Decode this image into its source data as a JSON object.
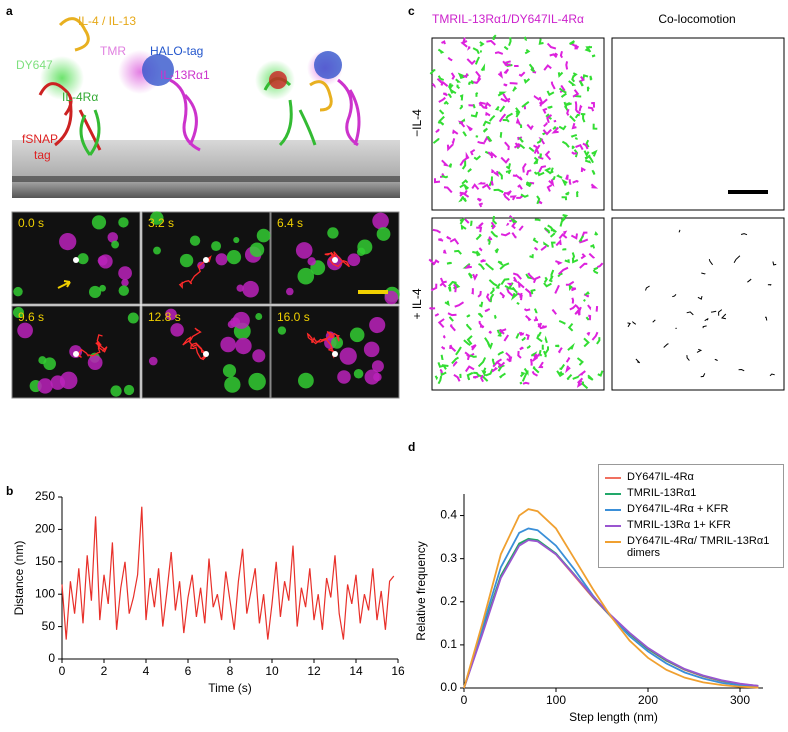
{
  "panel_labels": [
    "a",
    "b",
    "c",
    "d"
  ],
  "panel_a": {
    "labels": {
      "ligand": "IL-4 / IL-13",
      "tmr": "TMR",
      "halo": "HALO-tag",
      "dy647": "DY647",
      "il4r": "IL-4Rα",
      "il13r": "IL-13Rα1",
      "fsnap": [
        "fSNAP-",
        "tag"
      ]
    },
    "times": [
      "0.0 s",
      "3.2 s",
      "6.4 s",
      "9.6 s",
      "12.8 s",
      "16.0 s"
    ]
  },
  "panel_c": {
    "title_left": "TMRIL-13Rα1/DY647IL-4Rα",
    "title_right": "Co-locomotion",
    "rows": [
      "−IL-4",
      "+ IL-4"
    ]
  },
  "chart_data": [
    {
      "type": "line",
      "xlabel": "Time (s)",
      "ylabel": "Distance (nm)",
      "x": [
        0,
        0.2,
        0.4,
        0.6,
        0.8,
        1,
        1.2,
        1.4,
        1.6,
        1.8,
        2,
        2.2,
        2.4,
        2.6,
        2.8,
        3,
        3.2,
        3.4,
        3.6,
        3.8,
        4,
        4.2,
        4.4,
        4.6,
        4.8,
        5,
        5.2,
        5.4,
        5.6,
        5.8,
        6,
        6.2,
        6.4,
        6.6,
        6.8,
        7,
        7.2,
        7.4,
        7.6,
        7.8,
        8,
        8.2,
        8.4,
        8.6,
        8.8,
        9,
        9.2,
        9.4,
        9.6,
        9.8,
        10,
        10.2,
        10.4,
        10.6,
        10.8,
        11,
        11.2,
        11.4,
        11.6,
        11.8,
        12,
        12.2,
        12.4,
        12.6,
        12.8,
        13,
        13.2,
        13.4,
        13.6,
        13.8,
        14,
        14.2,
        14.4,
        14.6,
        14.8,
        15,
        15.2,
        15.4,
        15.6,
        15.8
      ],
      "series": [
        {
          "color": "#e8302a",
          "values": [
            115,
            30,
            120,
            70,
            140,
            55,
            160,
            90,
            220,
            60,
            130,
            85,
            180,
            45,
            110,
            150,
            70,
            95,
            130,
            235,
            60,
            125,
            80,
            140,
            50,
            105,
            165,
            75,
            120,
            40,
            95,
            130,
            65,
            110,
            55,
            155,
            80,
            100,
            60,
            135,
            90,
            45,
            120,
            170,
            70,
            105,
            140,
            55,
            100,
            30,
            85,
            150,
            65,
            120,
            90,
            175,
            50,
            110,
            80,
            140,
            60,
            100,
            45,
            125,
            95,
            160,
            70,
            30,
            115,
            85,
            130,
            55,
            100,
            75,
            140,
            60,
            105,
            45,
            120,
            128
          ]
        }
      ],
      "xlim": [
        0,
        16
      ],
      "xticks": [
        0,
        2,
        4,
        6,
        8,
        10,
        12,
        14,
        16
      ],
      "ylim": [
        0,
        250
      ],
      "yticks": [
        0,
        50,
        100,
        150,
        200,
        250
      ]
    },
    {
      "type": "line",
      "xlabel": "Step length (nm)",
      "ylabel": "Relative frequency",
      "x": [
        0,
        20,
        40,
        60,
        70,
        80,
        100,
        120,
        140,
        160,
        180,
        200,
        220,
        240,
        260,
        280,
        300,
        320
      ],
      "series": [
        {
          "name": "DY647IL-4Rα",
          "color": "#f07060",
          "values": [
            0,
            0.13,
            0.26,
            0.335,
            0.345,
            0.342,
            0.31,
            0.26,
            0.21,
            0.165,
            0.125,
            0.09,
            0.063,
            0.042,
            0.027,
            0.016,
            0.009,
            0.005
          ]
        },
        {
          "name": "TMRIL-13Rα1",
          "color": "#22a86a",
          "values": [
            0,
            0.13,
            0.26,
            0.335,
            0.346,
            0.343,
            0.312,
            0.263,
            0.212,
            0.166,
            0.126,
            0.091,
            0.064,
            0.043,
            0.028,
            0.017,
            0.009,
            0.005
          ]
        },
        {
          "name": "DY647IL-4Rα + KFR",
          "color": "#3a8fd8",
          "values": [
            0,
            0.14,
            0.28,
            0.36,
            0.37,
            0.366,
            0.33,
            0.275,
            0.215,
            0.165,
            0.12,
            0.085,
            0.057,
            0.036,
            0.022,
            0.012,
            0.006,
            0.003
          ]
        },
        {
          "name": "TMRIL-13Rα 1+ KFR",
          "color": "#9a55d0",
          "values": [
            0,
            0.125,
            0.255,
            0.33,
            0.343,
            0.34,
            0.31,
            0.262,
            0.213,
            0.168,
            0.128,
            0.093,
            0.066,
            0.044,
            0.029,
            0.018,
            0.01,
            0.005
          ]
        },
        {
          "name": "DY647IL-4Rα/ TMRIL-13Rα1 dimers",
          "color": "#f0a030",
          "values": [
            0,
            0.15,
            0.31,
            0.4,
            0.415,
            0.41,
            0.37,
            0.3,
            0.23,
            0.165,
            0.11,
            0.07,
            0.042,
            0.024,
            0.013,
            0.007,
            0.003,
            0.001
          ]
        }
      ],
      "xlim": [
        0,
        325
      ],
      "xticks": [
        0,
        100,
        200,
        300
      ],
      "ylim": [
        0,
        0.45
      ],
      "yticks": [
        {
          "value": 0,
          "label": "0.0"
        },
        0.1,
        0.2,
        0.3,
        0.4
      ]
    }
  ]
}
